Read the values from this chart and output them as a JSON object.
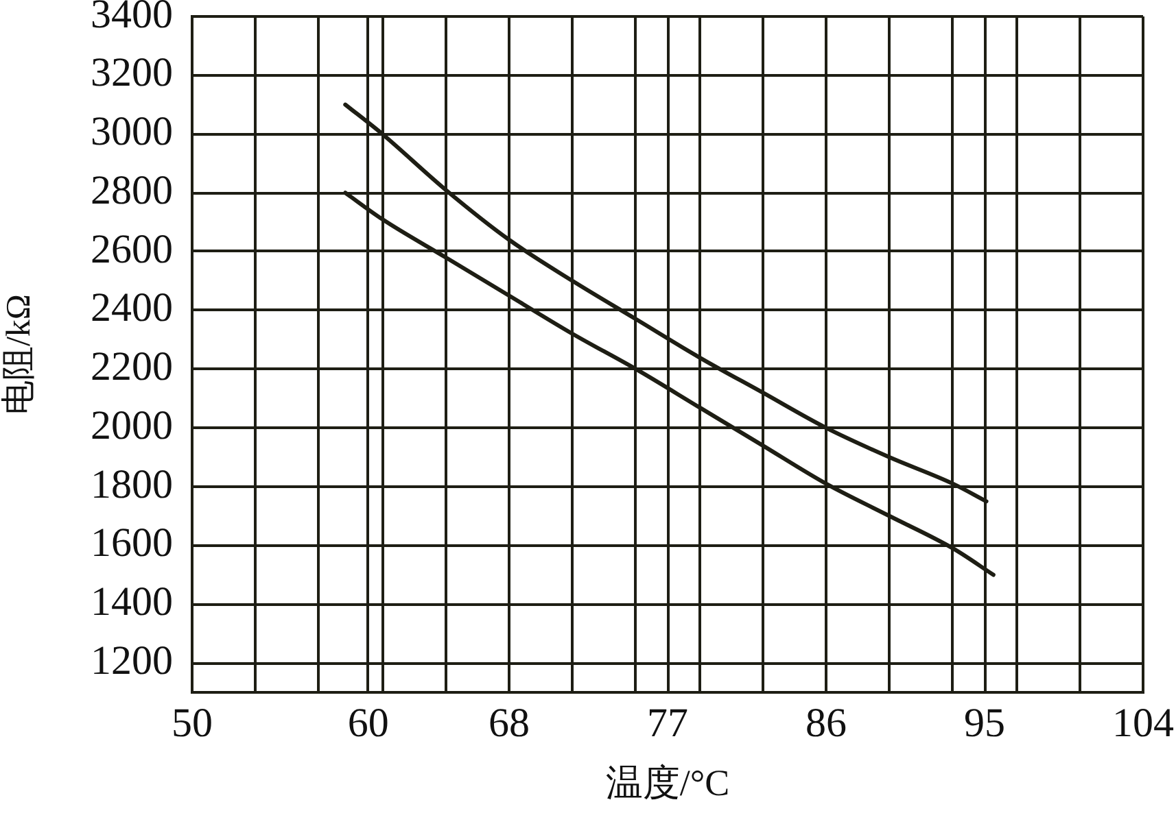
{
  "chart_data": {
    "type": "line",
    "xlabel": "温度/°C",
    "ylabel": "电阻/kΩ",
    "xlim": [
      50,
      104
    ],
    "xticks": [
      50,
      {
        "value": 53.6,
        "label": null
      },
      {
        "value": 57.2,
        "label": null
      },
      60,
      {
        "value": 60.8,
        "label": null
      },
      {
        "value": 64.4,
        "label": null
      },
      68,
      {
        "value": 71.6,
        "label": null
      },
      {
        "value": 75.2,
        "label": null
      },
      77,
      {
        "value": 78.8,
        "label": null
      },
      {
        "value": 82.4,
        "label": null
      },
      86,
      {
        "value": 89.6,
        "label": null
      },
      {
        "value": 93.2,
        "label": null
      },
      95,
      {
        "value": 96.8,
        "label": null
      },
      {
        "value": 100.4,
        "label": null
      },
      104
    ],
    "ylim": [
      1100,
      3400
    ],
    "yticks": [
      1200,
      1400,
      1600,
      1800,
      2000,
      2200,
      2400,
      2600,
      2800,
      3000,
      3200,
      3400
    ],
    "grid": true,
    "line_style": "solid",
    "series": [
      {
        "color": "#1e1e14",
        "x": [
          58.7,
          60.8,
          64.4,
          68.0,
          71.6,
          75.2,
          78.8,
          82.4,
          86.0,
          89.6,
          93.2,
          95.1
        ],
        "values": [
          3100,
          3000,
          2810,
          2640,
          2500,
          2370,
          2240,
          2120,
          2000,
          1900,
          1810,
          1750
        ]
      },
      {
        "color": "#1e1e14",
        "x": [
          58.7,
          60.8,
          64.4,
          68.0,
          71.6,
          75.2,
          78.8,
          82.4,
          86.0,
          89.6,
          93.2,
          95.5
        ],
        "values": [
          2800,
          2710,
          2580,
          2450,
          2320,
          2200,
          2070,
          1940,
          1810,
          1700,
          1590,
          1500
        ]
      }
    ]
  }
}
